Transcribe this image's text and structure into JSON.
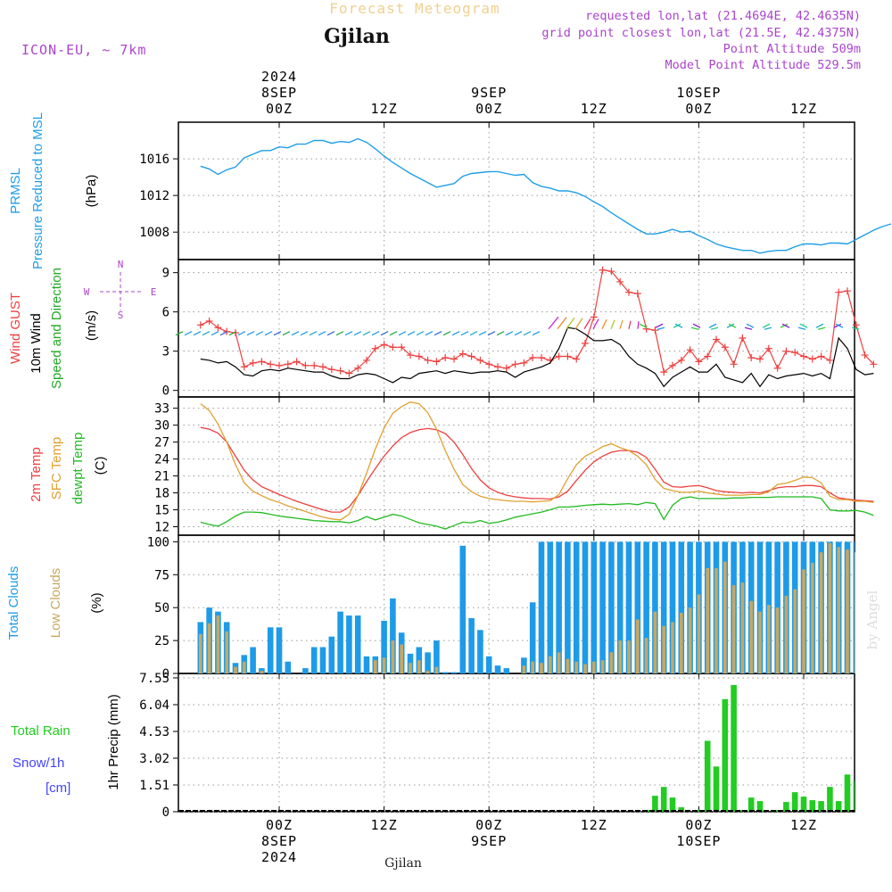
{
  "header": {
    "title": "Forecast Meteogram",
    "location": "Gjilan",
    "model": "ICON-EU, ~ 7km",
    "requested": "requested lon,lat (21.4694E, 42.4635N)",
    "grid": "grid point closest lon,lat (21.5E, 42.4375N)",
    "point_alt": "Point Altitude 509m",
    "model_alt": "Model Point Altitude 529.5m",
    "footer_location": "Gjilan",
    "watermark": "by Angel"
  },
  "time_axis": {
    "top_labels": [
      {
        "h": 0,
        "lines": [
          "2024",
          "8SEP",
          "00Z"
        ]
      },
      {
        "h": 12,
        "lines": [
          "12Z"
        ]
      },
      {
        "h": 24,
        "lines": [
          "9SEP",
          "00Z"
        ]
      },
      {
        "h": 36,
        "lines": [
          "12Z"
        ]
      },
      {
        "h": 48,
        "lines": [
          "10SEP",
          "00Z"
        ]
      },
      {
        "h": 60,
        "lines": [
          "12Z"
        ]
      }
    ],
    "bottom_labels": [
      {
        "h": 0,
        "lines": [
          "00Z",
          "8SEP",
          "2024"
        ]
      },
      {
        "h": 12,
        "lines": [
          "12Z"
        ]
      },
      {
        "h": 24,
        "lines": [
          "00Z",
          "9SEP"
        ]
      },
      {
        "h": 36,
        "lines": [
          "12Z"
        ]
      },
      {
        "h": 48,
        "lines": [
          "00Z",
          "10SEP"
        ]
      },
      {
        "h": 60,
        "lines": [
          "12Z"
        ]
      }
    ]
  },
  "colors": {
    "pressure": "#1f9fe8",
    "gust": "#ee4040",
    "wind10m": "#000000",
    "wind_dir_label": "#22aa22",
    "temp2m": "#ee4040",
    "sfc_temp": "#e0a030",
    "dewpt": "#22bb22",
    "total_clouds": "#1e9be8",
    "low_clouds": "#c8a860",
    "rain": "#22cc22",
    "snow": "#4444ff",
    "compass": "#aa44cc",
    "title": "#f0d090",
    "info": "#aa44cc"
  },
  "panels": {
    "pressure": {
      "labels": [
        "PRMSL",
        "Pressure Reduced to MSL"
      ],
      "unit": "(hPa)"
    },
    "wind": {
      "labels": [
        "Wind GUST",
        "10m Wind",
        "Speed and Direction"
      ],
      "unit": "(m/s)",
      "compass": {
        "n": "N",
        "s": "S",
        "e": "E",
        "w": "W"
      }
    },
    "temp": {
      "labels": [
        "2m Temp",
        "SFC Temp",
        "dewpt Temp"
      ],
      "unit": "(C)"
    },
    "clouds": {
      "labels": [
        "Total Clouds",
        "Low Clouds"
      ],
      "unit": "(%)"
    },
    "precip": {
      "labels": [
        "Total  Rain",
        "Snow/1h",
        "[cm]"
      ],
      "unit": "1hr Precip (mm)"
    }
  },
  "chart_data": [
    {
      "type": "line",
      "name": "pressure",
      "x_start": -9,
      "x_step": 1,
      "ylim": [
        1005,
        1020
      ],
      "yticks": [
        1008,
        1012,
        1016
      ],
      "series": [
        {
          "name": "PRMSL",
          "values": [
            1015.2,
            1014.9,
            1014.3,
            1014.8,
            1015.1,
            1016.1,
            1016.5,
            1016.9,
            1016.9,
            1017.3,
            1017.2,
            1017.6,
            1017.6,
            1018.0,
            1018.0,
            1017.7,
            1017.9,
            1017.8,
            1018.2,
            1017.8,
            1017.1,
            1016.3,
            1015.6,
            1015.0,
            1014.4,
            1013.9,
            1013.4,
            1012.9,
            1013.1,
            1013.3,
            1014.1,
            1014.4,
            1014.5,
            1014.6,
            1014.6,
            1014.4,
            1014.2,
            1014.3,
            1013.4,
            1013.0,
            1012.8,
            1012.5,
            1012.5,
            1012.3,
            1011.9,
            1011.3,
            1010.8,
            1010.1,
            1009.5,
            1008.9,
            1008.3,
            1007.8,
            1007.8,
            1008.0,
            1008.3,
            1008.0,
            1008.1,
            1007.6,
            1007.2,
            1006.7,
            1006.4,
            1006.2,
            1006.0,
            1006.0,
            1005.7,
            1005.9,
            1006.0,
            1006.0,
            1006.4,
            1006.7,
            1006.7,
            1006.6,
            1006.8,
            1006.8,
            1006.7,
            1007.2,
            1007.7,
            1008.2,
            1008.6,
            1008.9
          ]
        }
      ]
    },
    {
      "type": "line",
      "name": "wind",
      "x_start": -9,
      "x_step": 1,
      "ylim": [
        -0.5,
        10
      ],
      "yticks": [
        0,
        3,
        6,
        9
      ],
      "series": [
        {
          "name": "Wind GUST",
          "values": [
            5.0,
            5.3,
            4.8,
            4.5,
            4.4,
            1.8,
            2.1,
            2.2,
            2.0,
            1.9,
            2.0,
            2.2,
            1.9,
            1.9,
            1.8,
            1.6,
            1.5,
            1.3,
            1.7,
            2.3,
            3.2,
            3.5,
            3.3,
            3.3,
            2.7,
            2.6,
            2.3,
            2.2,
            2.5,
            2.4,
            2.8,
            2.6,
            2.3,
            2.0,
            1.8,
            1.7,
            2.0,
            2.1,
            2.5,
            2.5,
            2.3,
            2.6,
            2.6,
            2.4,
            3.6,
            5.6,
            9.2,
            9.1,
            8.3,
            7.5,
            7.4,
            4.7,
            4.6,
            1.4,
            1.9,
            2.3,
            3.1,
            2.2,
            2.6,
            3.9,
            3.3,
            2.0,
            4.0,
            2.5,
            2.4,
            3.2,
            1.7,
            3.0,
            2.9,
            2.6,
            2.4,
            2.6,
            2.3,
            7.5,
            7.6,
            5.0,
            2.7,
            2.0
          ]
        },
        {
          "name": "10m Wind",
          "values": [
            2.4,
            2.3,
            2.1,
            2.2,
            1.8,
            1.2,
            1.1,
            1.5,
            1.6,
            1.5,
            1.7,
            1.6,
            1.5,
            1.4,
            1.4,
            1.1,
            0.9,
            0.9,
            1.2,
            1.3,
            1.2,
            0.9,
            0.6,
            1.0,
            0.9,
            1.3,
            1.4,
            1.5,
            1.3,
            1.5,
            1.4,
            1.3,
            1.4,
            1.4,
            1.5,
            1.4,
            1.0,
            1.4,
            1.6,
            1.8,
            2.1,
            3.2,
            4.8,
            4.7,
            4.3,
            3.8,
            3.8,
            3.9,
            3.5,
            2.6,
            2.0,
            1.7,
            1.3,
            0.3,
            1.0,
            1.4,
            1.8,
            1.4,
            1.4,
            2.0,
            1.0,
            0.8,
            0.6,
            1.3,
            0.3,
            1.2,
            0.9,
            1.1,
            1.2,
            1.3,
            1.1,
            1.3,
            0.9,
            4.0,
            3.2,
            1.6,
            1.2,
            1.3
          ]
        }
      ]
    },
    {
      "type": "line",
      "name": "temperature",
      "x_start": -9,
      "x_step": 1,
      "ylim": [
        10.5,
        35
      ],
      "yticks": [
        12,
        15,
        18,
        21,
        24,
        27,
        30,
        33
      ],
      "series": [
        {
          "name": "2m Temp",
          "values": [
            29.6,
            29.3,
            28.6,
            27.0,
            24.5,
            22.0,
            20.3,
            19.1,
            18.4,
            17.7,
            17.1,
            16.5,
            16.0,
            15.5,
            15.0,
            14.6,
            14.6,
            15.5,
            17.5,
            20.0,
            22.3,
            24.5,
            26.3,
            27.8,
            28.7,
            29.2,
            29.4,
            29.2,
            28.5,
            27.0,
            24.8,
            22.3,
            20.3,
            18.9,
            18.1,
            17.6,
            17.3,
            17.1,
            17.0,
            17.0,
            16.9,
            17.3,
            18.3,
            20.2,
            22.0,
            23.5,
            24.5,
            25.2,
            25.5,
            25.5,
            25.2,
            24.3,
            22.2,
            19.9,
            19.1,
            19.0,
            19.2,
            19.3,
            18.9,
            18.4,
            18.2,
            18.1,
            18.0,
            18.1,
            18.0,
            18.4,
            18.9,
            19.1,
            19.1,
            19.3,
            19.3,
            19.1,
            18.0,
            17.1,
            16.9,
            16.7,
            16.6,
            16.5
          ]
        },
        {
          "name": "SFC Temp",
          "values": [
            33.8,
            32.6,
            30.2,
            27.0,
            23.0,
            19.8,
            18.3,
            17.5,
            16.8,
            16.3,
            15.7,
            15.2,
            14.7,
            14.2,
            13.7,
            13.4,
            13.2,
            14.2,
            17.5,
            21.5,
            25.8,
            29.5,
            32.1,
            33.3,
            34.1,
            33.8,
            32.2,
            29.3,
            25.5,
            22.2,
            19.5,
            18.2,
            17.4,
            17.0,
            16.8,
            16.6,
            16.5,
            16.5,
            16.4,
            16.5,
            16.6,
            17.7,
            20.5,
            23.0,
            24.5,
            25.3,
            26.2,
            26.7,
            26.0,
            25.5,
            24.5,
            23.0,
            20.4,
            18.8,
            18.4,
            18.1,
            18.1,
            18.3,
            18.0,
            17.8,
            17.6,
            17.6,
            17.6,
            17.7,
            17.7,
            18.2,
            19.5,
            19.7,
            20.2,
            20.8,
            20.7,
            19.8,
            17.4,
            16.8,
            16.8,
            16.5,
            16.5,
            16.3
          ]
        },
        {
          "name": "dewpt Temp",
          "values": [
            12.8,
            12.4,
            12.1,
            12.9,
            13.9,
            14.6,
            14.6,
            14.5,
            14.2,
            13.9,
            13.7,
            13.5,
            13.3,
            13.1,
            13.0,
            12.9,
            12.9,
            12.7,
            13.1,
            13.8,
            13.2,
            13.7,
            14.2,
            13.9,
            13.3,
            12.7,
            12.4,
            12.1,
            11.6,
            12.2,
            12.8,
            12.7,
            13.1,
            12.6,
            12.8,
            13.2,
            13.7,
            14.0,
            14.3,
            14.6,
            15.0,
            15.5,
            15.5,
            15.6,
            15.8,
            15.9,
            16.0,
            15.9,
            16.0,
            16.1,
            15.9,
            16.3,
            16.1,
            13.3,
            15.8,
            17.0,
            17.3,
            17.0,
            17.0,
            17.0,
            17.0,
            17.1,
            17.1,
            17.2,
            17.2,
            17.2,
            17.3,
            17.3,
            17.3,
            17.3,
            17.3,
            17.0,
            15.0,
            14.8,
            14.8,
            14.9,
            14.6,
            14.0
          ]
        }
      ]
    },
    {
      "type": "bar",
      "name": "clouds",
      "x_start": -9,
      "x_step": 1,
      "ylim": [
        0,
        105
      ],
      "yticks": [
        0,
        25,
        50,
        75,
        100
      ],
      "series": [
        {
          "name": "Total Clouds",
          "values": [
            39,
            50,
            47,
            39,
            8,
            14,
            20,
            4,
            35,
            35,
            9,
            0,
            4,
            20,
            20,
            28,
            47,
            44,
            44,
            13,
            13,
            40,
            57,
            31,
            15,
            20,
            16,
            25,
            1,
            1,
            97,
            42,
            33,
            13,
            6,
            4,
            0,
            12,
            54,
            100,
            100,
            100,
            100,
            100,
            100,
            100,
            100,
            100,
            100,
            100,
            100,
            100,
            100,
            100,
            100,
            100,
            100,
            100,
            100,
            100,
            100,
            100,
            100,
            100,
            100,
            100,
            100,
            100,
            100,
            100,
            100,
            100,
            100,
            100,
            100,
            100,
            100,
            100,
            100,
            88
          ]
        },
        {
          "name": "Low Clouds",
          "values": [
            30,
            38,
            44,
            32,
            5,
            9,
            0,
            2,
            0,
            0,
            0,
            0,
            0,
            0,
            0,
            0,
            0,
            0,
            0,
            0,
            10,
            12,
            25,
            22,
            8,
            10,
            2,
            5,
            0,
            0,
            0,
            0,
            0,
            0,
            0,
            0,
            0,
            6,
            9,
            8,
            13,
            16,
            11,
            9,
            7,
            9,
            10,
            16,
            25,
            25,
            41,
            27,
            47,
            36,
            39,
            46,
            50,
            60,
            80,
            80,
            85,
            67,
            69,
            55,
            47,
            52,
            50,
            59,
            64,
            79,
            84,
            92,
            99,
            96,
            94,
            92,
            88,
            80
          ]
        }
      ]
    },
    {
      "type": "bar",
      "name": "precip",
      "x_start": -9,
      "x_step": 1,
      "ylim": [
        0,
        7.8
      ],
      "yticks": [
        0,
        1.51,
        3.02,
        4.53,
        6.04,
        7.55
      ],
      "series": [
        {
          "name": "Total Rain",
          "values": [
            0,
            0,
            0,
            0,
            0,
            0,
            0,
            0,
            0,
            0,
            0,
            0,
            0,
            0,
            0,
            0,
            0,
            0,
            0,
            0,
            0,
            0,
            0,
            0,
            0,
            0,
            0,
            0,
            0,
            0,
            0,
            0,
            0,
            0,
            0,
            0,
            0,
            0,
            0,
            0,
            0,
            0,
            0,
            0,
            0,
            0,
            0,
            0,
            0,
            0,
            0,
            0.1,
            0.9,
            1.4,
            0.8,
            0.25,
            0,
            0.1,
            4.0,
            2.55,
            6.35,
            7.15,
            0.1,
            0.8,
            0.6,
            0,
            0.1,
            0.55,
            1.1,
            0.85,
            0.65,
            0.6,
            1.4,
            0.6,
            2.1,
            1.75,
            0.45,
            0
          ]
        }
      ]
    }
  ]
}
